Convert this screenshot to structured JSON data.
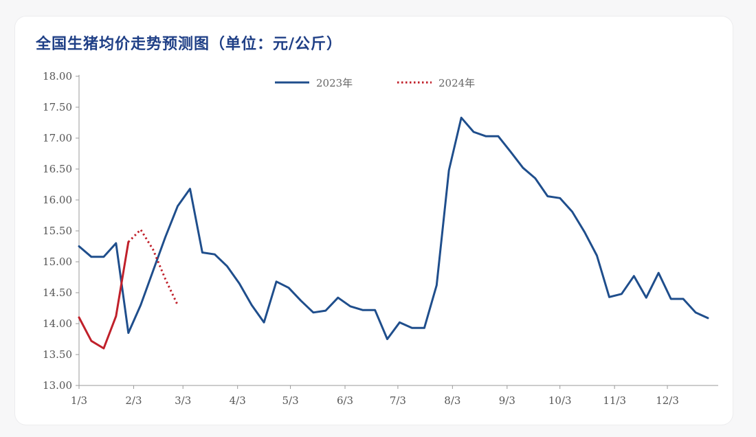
{
  "chart_data": {
    "type": "line",
    "title": "全国生猪均价走势预测图（单位：元/公斤）",
    "xlabel": "",
    "ylabel": "",
    "ylim": [
      13.0,
      18.0
    ],
    "yticks": [
      "18.00",
      "17.50",
      "17.00",
      "16.50",
      "16.00",
      "15.50",
      "15.00",
      "14.50",
      "14.00",
      "13.50",
      "13.00"
    ],
    "xticks": [
      "1/3",
      "2/3",
      "3/3",
      "4/3",
      "5/3",
      "6/3",
      "7/3",
      "8/3",
      "9/3",
      "10/3",
      "11/3",
      "12/3"
    ],
    "legend_position": "top-center",
    "series": [
      {
        "name": "2023年",
        "style": "solid",
        "color": "#1f4e8c",
        "points": [
          [
            "1/3",
            15.25
          ],
          [
            "1/10",
            15.08
          ],
          [
            "1/17",
            15.08
          ],
          [
            "1/24",
            15.3
          ],
          [
            "1/31",
            13.85
          ],
          [
            "2/7",
            14.3
          ],
          [
            "2/14",
            14.85
          ],
          [
            "2/21",
            15.4
          ],
          [
            "2/28",
            15.9
          ],
          [
            "3/7",
            16.18
          ],
          [
            "3/14",
            15.15
          ],
          [
            "3/21",
            15.12
          ],
          [
            "3/28",
            14.93
          ],
          [
            "4/4",
            14.65
          ],
          [
            "4/11",
            14.3
          ],
          [
            "4/18",
            14.02
          ],
          [
            "4/25",
            14.68
          ],
          [
            "5/2",
            14.58
          ],
          [
            "5/9",
            14.37
          ],
          [
            "5/16",
            14.18
          ],
          [
            "5/23",
            14.21
          ],
          [
            "5/30",
            14.42
          ],
          [
            "6/6",
            14.28
          ],
          [
            "6/13",
            14.22
          ],
          [
            "6/20",
            14.22
          ],
          [
            "6/27",
            13.75
          ],
          [
            "7/4",
            14.02
          ],
          [
            "7/11",
            13.93
          ],
          [
            "7/18",
            13.93
          ],
          [
            "7/25",
            14.62
          ],
          [
            "8/1",
            16.48
          ],
          [
            "8/8",
            17.33
          ],
          [
            "8/15",
            17.1
          ],
          [
            "8/22",
            17.03
          ],
          [
            "8/29",
            17.03
          ],
          [
            "9/5",
            16.78
          ],
          [
            "9/12",
            16.52
          ],
          [
            "9/19",
            16.35
          ],
          [
            "9/26",
            16.06
          ],
          [
            "10/3",
            16.03
          ],
          [
            "10/10",
            15.81
          ],
          [
            "10/17",
            15.48
          ],
          [
            "10/24",
            15.1
          ],
          [
            "10/31",
            14.43
          ],
          [
            "11/7",
            14.48
          ],
          [
            "11/14",
            14.77
          ],
          [
            "11/21",
            14.42
          ],
          [
            "11/28",
            14.82
          ],
          [
            "12/5",
            14.4
          ],
          [
            "12/12",
            14.4
          ],
          [
            "12/19",
            14.18
          ],
          [
            "12/26",
            14.09
          ]
        ]
      },
      {
        "name": "2024年",
        "style": "solid-then-dotted",
        "color": "#c0202a",
        "actual_points": [
          [
            "1/3",
            14.1
          ],
          [
            "1/10",
            13.72
          ],
          [
            "1/17",
            13.6
          ],
          [
            "1/24",
            14.12
          ],
          [
            "1/31",
            15.32
          ]
        ],
        "forecast_points": [
          [
            "1/31",
            15.32
          ],
          [
            "2/7",
            15.52
          ],
          [
            "2/14",
            15.2
          ],
          [
            "2/21",
            14.72
          ],
          [
            "2/28",
            14.3
          ]
        ]
      }
    ]
  }
}
